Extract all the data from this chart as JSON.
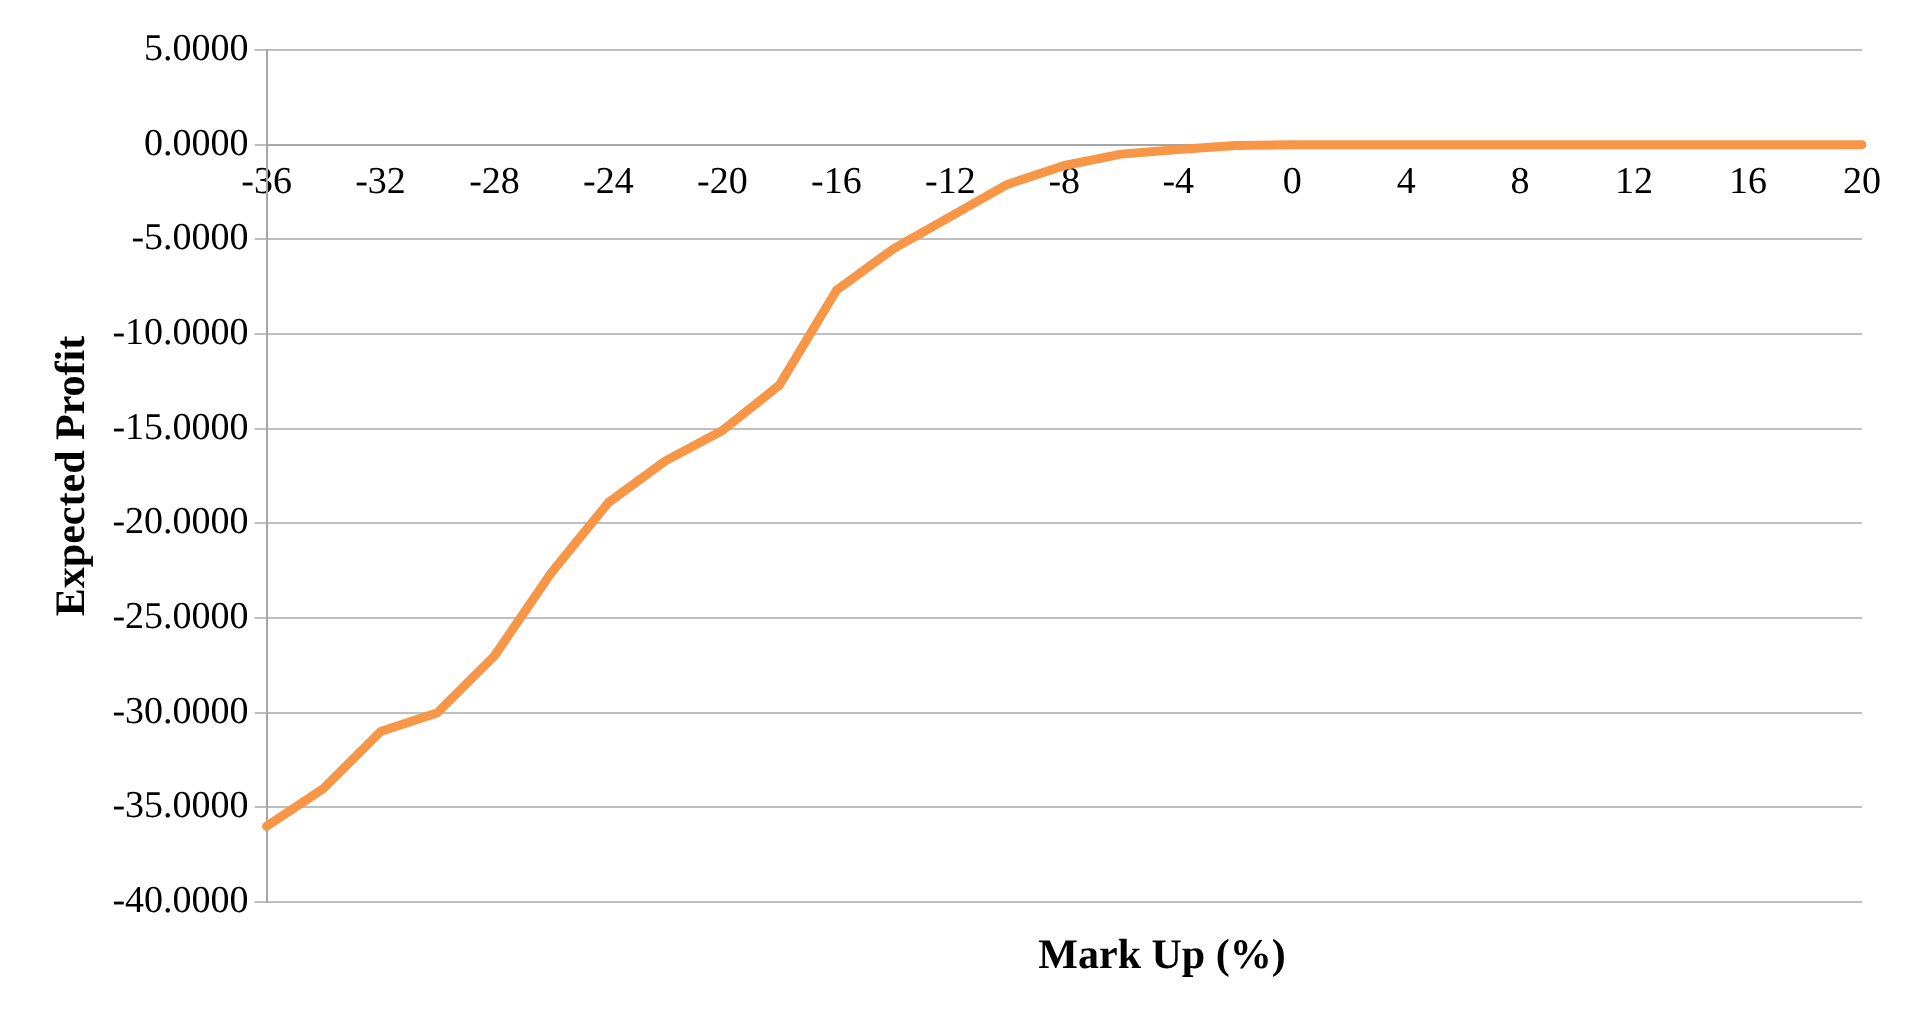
{
  "chart_data": {
    "type": "line",
    "xlabel": "Mark Up (%)",
    "ylabel": "Expected Profit",
    "categories": [
      "-36",
      null,
      "-32",
      null,
      "-28",
      null,
      "-24",
      null,
      "-20",
      null,
      "-16",
      null,
      "-12",
      null,
      "-8",
      null,
      "-4",
      null,
      "0",
      null,
      "4",
      null,
      "8",
      null,
      "12",
      null,
      "16",
      null,
      "20"
    ],
    "series": [
      {
        "color": "#f79646",
        "values": [
          -36,
          -34,
          -31,
          -30,
          -27,
          -22.6,
          -18.9,
          -16.7,
          -15.1,
          -12.7,
          -7.7,
          -5.5,
          -3.8,
          -2.1,
          -1.1,
          -0.5,
          -0.25,
          -0.05,
          0,
          0,
          0,
          0,
          0,
          0,
          0,
          0,
          0,
          0,
          0
        ]
      }
    ],
    "ylim": [
      -40,
      5
    ],
    "yticks": [
      {
        "value": 5,
        "label": "5.0000"
      },
      {
        "value": 0,
        "label": "0.0000"
      },
      {
        "value": -5,
        "label": "-5.0000"
      },
      {
        "value": -10,
        "label": "-10.0000"
      },
      {
        "value": -15,
        "label": "-15.0000"
      },
      {
        "value": -20,
        "label": "-20.0000"
      },
      {
        "value": -25,
        "label": "-25.0000"
      },
      {
        "value": -30,
        "label": "-30.0000"
      },
      {
        "value": -35,
        "label": "-35.0000"
      },
      {
        "value": -40,
        "label": "-40.0000"
      }
    ],
    "grid": "y",
    "legend": false,
    "marker": "none",
    "line_style": "solid"
  }
}
